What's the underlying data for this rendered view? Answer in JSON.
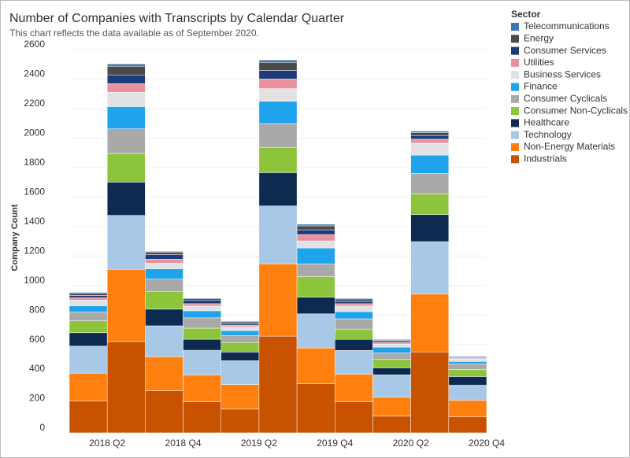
{
  "chart_data": {
    "type": "stacked_bar",
    "title": "Number of Companies with Transcripts by Calendar Quarter",
    "subtitle": "This chart reflects the data available as of September 2020.",
    "y_label": "Company Count",
    "legend_title": "Sector",
    "legend": "right",
    "grid": true,
    "categories": [
      "2018 Q2",
      null,
      "2018 Q4",
      null,
      "2019 Q2",
      null,
      "2019 Q4",
      null,
      "2020 Q2",
      null,
      "2020 Q4"
    ],
    "ylim": [
      0,
      2680
    ],
    "yticks": [
      0,
      200,
      400,
      600,
      800,
      1000,
      1200,
      1400,
      1600,
      1800,
      2000,
      2200,
      2400,
      2600
    ],
    "series": [
      {
        "name": "Telecommunications",
        "color": "#3b78b5",
        "values": [
          5,
          16,
          5,
          5,
          5,
          16,
          11,
          5,
          5,
          11,
          5
        ]
      },
      {
        "name": "Energy",
        "color": "#4a4a4a",
        "values": [
          16,
          59,
          16,
          11,
          11,
          54,
          27,
          16,
          5,
          22,
          5
        ]
      },
      {
        "name": "Consumer Services",
        "color": "#1f3a78",
        "values": [
          16,
          59,
          32,
          22,
          11,
          59,
          32,
          16,
          11,
          22,
          5
        ]
      },
      {
        "name": "Utilities",
        "color": "#e8909c",
        "values": [
          16,
          59,
          27,
          16,
          11,
          65,
          43,
          16,
          11,
          27,
          5
        ]
      },
      {
        "name": "Business Services",
        "color": "#e2e2e2",
        "values": [
          38,
          97,
          38,
          32,
          27,
          86,
          48,
          38,
          22,
          81,
          16
        ]
      },
      {
        "name": "Finance",
        "color": "#1fa3ec",
        "values": [
          43,
          151,
          70,
          48,
          32,
          151,
          108,
          48,
          38,
          124,
          16
        ]
      },
      {
        "name": "Consumer Cyclicals",
        "color": "#a9a9a9",
        "values": [
          59,
          167,
          86,
          70,
          48,
          161,
          86,
          70,
          43,
          140,
          38
        ]
      },
      {
        "name": "Consumer Non-Cyclicals",
        "color": "#8cc43c",
        "values": [
          81,
          194,
          118,
          75,
          65,
          172,
          140,
          70,
          59,
          140,
          48
        ]
      },
      {
        "name": "Healthcare",
        "color": "#0d2a50",
        "values": [
          91,
          226,
          113,
          75,
          59,
          226,
          113,
          75,
          48,
          183,
          59
        ]
      },
      {
        "name": "Technology",
        "color": "#a7c8e6",
        "values": [
          183,
          366,
          210,
          167,
          161,
          393,
          231,
          161,
          151,
          355,
          102
        ]
      },
      {
        "name": "Non-Energy Materials",
        "color": "#ff800e",
        "values": [
          190,
          490,
          231,
          183,
          167,
          490,
          242,
          188,
          129,
          393,
          113
        ]
      },
      {
        "name": "Industrials",
        "color": "#c85200",
        "values": [
          215,
          619,
          285,
          210,
          161,
          656,
          334,
          210,
          113,
          549,
          108
        ]
      }
    ]
  }
}
